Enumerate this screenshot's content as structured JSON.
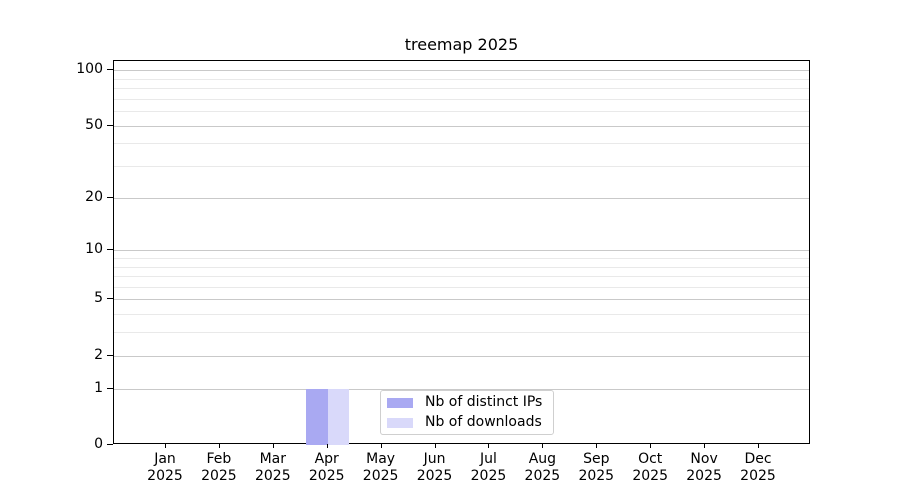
{
  "chart_data": {
    "type": "bar",
    "title": "treemap 2025",
    "categories": [
      "Jan 2025",
      "Feb 2025",
      "Mar 2025",
      "Apr 2025",
      "May 2025",
      "Jun 2025",
      "Jul 2025",
      "Aug 2025",
      "Sep 2025",
      "Oct 2025",
      "Nov 2025",
      "Dec 2025"
    ],
    "x_tick_months": [
      "Jan",
      "Feb",
      "Mar",
      "Apr",
      "May",
      "Jun",
      "Jul",
      "Aug",
      "Sep",
      "Oct",
      "Nov",
      "Dec"
    ],
    "x_tick_year": "2025",
    "series": [
      {
        "name": "Nb of distinct IPs",
        "color": "#a9a9f2",
        "values": [
          0,
          0,
          0,
          1,
          0,
          0,
          0,
          0,
          0,
          0,
          0,
          0
        ]
      },
      {
        "name": "Nb of downloads",
        "color": "#d9d9fa",
        "values": [
          0,
          0,
          0,
          1,
          0,
          0,
          0,
          0,
          0,
          0,
          0,
          0
        ]
      }
    ],
    "xlabel": "",
    "ylabel": "",
    "ylim": [
      0,
      112
    ],
    "y_axis": {
      "scale": "log1p",
      "labeled_ticks": [
        0,
        1,
        2,
        5,
        10,
        20,
        50,
        100
      ],
      "minor_gridlines": [
        3,
        4,
        6,
        7,
        8,
        9,
        30,
        40,
        60,
        70,
        80,
        90
      ]
    },
    "grid": "horizontal",
    "legend_position": "lower center"
  },
  "colors": {
    "grid_major": "#c9c9c9",
    "grid_minor": "#e9e9e9",
    "spine": "#000000",
    "legend_border": "#cfcfcf",
    "text": "#000000",
    "background": "#ffffff"
  }
}
